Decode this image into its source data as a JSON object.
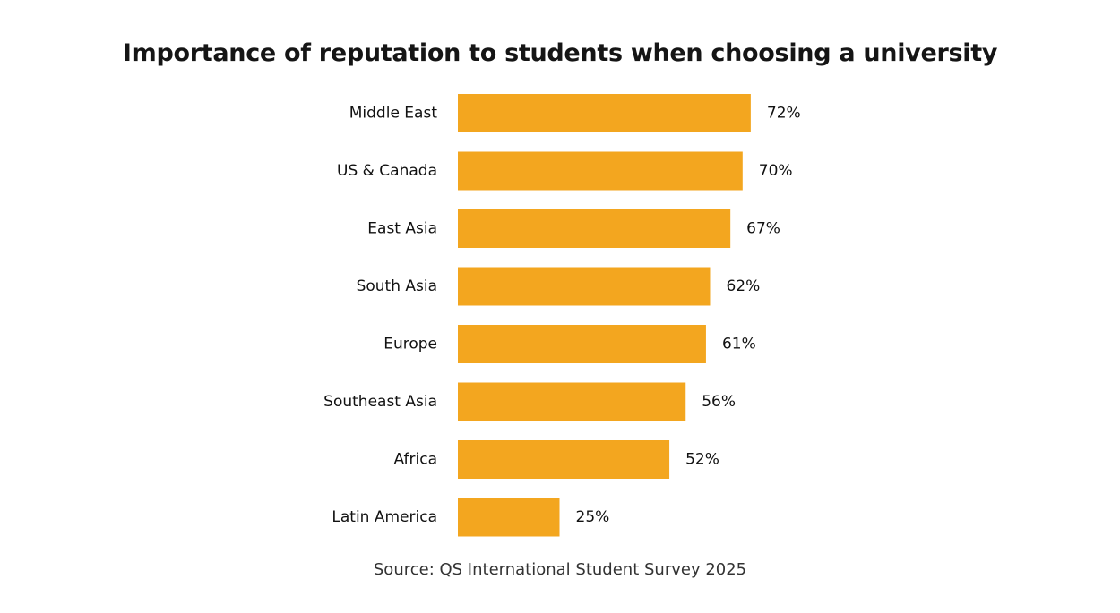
{
  "chart_data": {
    "type": "bar",
    "orientation": "horizontal",
    "title": "Importance of reputation to students when choosing a university",
    "categories": [
      "Middle East",
      "US & Canada",
      "East Asia",
      "South Asia",
      "Europe",
      "Southeast Asia",
      "Africa",
      "Latin America"
    ],
    "values": [
      72,
      70,
      67,
      62,
      61,
      56,
      52,
      25
    ],
    "value_labels": [
      "72%",
      "70%",
      "67%",
      "62%",
      "61%",
      "56%",
      "52%",
      "25%"
    ],
    "unit": "%",
    "xlim": [
      0,
      100
    ],
    "bar_color": "#F3A61F",
    "grid": false,
    "legend": "none",
    "source": "Source: QS International Student Survey 2025"
  }
}
